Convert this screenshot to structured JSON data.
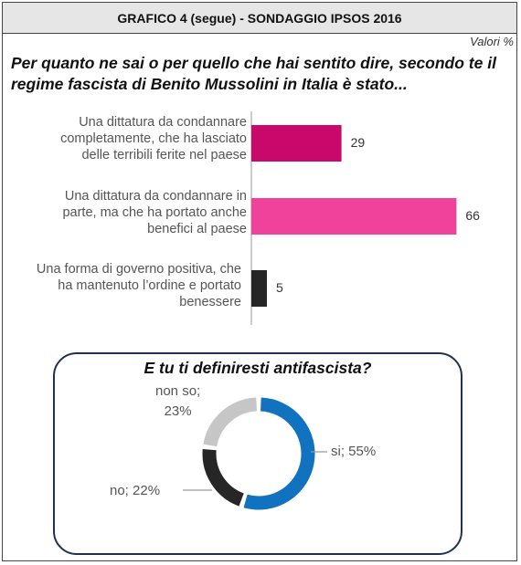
{
  "header": {
    "title": "GRAFICO 4 (segue) - SONDAGGIO IPSOS 2016"
  },
  "units": "Valori %",
  "colors": {
    "bar1": "#c8086b",
    "bar2": "#f0429a",
    "bar3": "#262626",
    "donut_si": "#1172bf",
    "donut_no": "#262626",
    "donut_nonso": "#c6c6c6",
    "panel_border": "#1f3350"
  },
  "chart_data": [
    {
      "type": "bar",
      "orientation": "horizontal",
      "title": "Per quanto ne sai o per quello che hai sentito dire, secondo te il regime fascista di Benito Mussolini in Italia è stato...",
      "categories": [
        "Una dittatura da condannare completamente, che ha lasciato delle terribili ferite nel paese",
        "Una dittatura da condannare in parte, ma che ha portato anche benefici al paese",
        "Una forma di governo positiva, che ha mantenuto l’ordine e portato benessere"
      ],
      "category_lines": [
        [
          "Una dittatura da condannare",
          "completamente, che ha lasciato",
          "delle terribili ferite nel paese"
        ],
        [
          "Una dittatura da condannare in",
          "parte, ma che ha portato anche",
          "benefici al paese"
        ],
        [
          "Una forma di governo positiva, che",
          "ha mantenuto l’ordine e portato",
          "benessere"
        ]
      ],
      "values": [
        29,
        66,
        5
      ],
      "xlim": [
        0,
        100
      ],
      "grid": false
    },
    {
      "type": "pie",
      "variant": "donut",
      "title": "E tu ti definiresti antifascista?",
      "slices": [
        {
          "label": "si",
          "value": 55,
          "display": "si; 55%"
        },
        {
          "label": "no",
          "value": 22,
          "display": "no; 22%"
        },
        {
          "label": "non so",
          "value": 23,
          "display_lines": [
            "non so;",
            "23%"
          ]
        }
      ]
    }
  ]
}
